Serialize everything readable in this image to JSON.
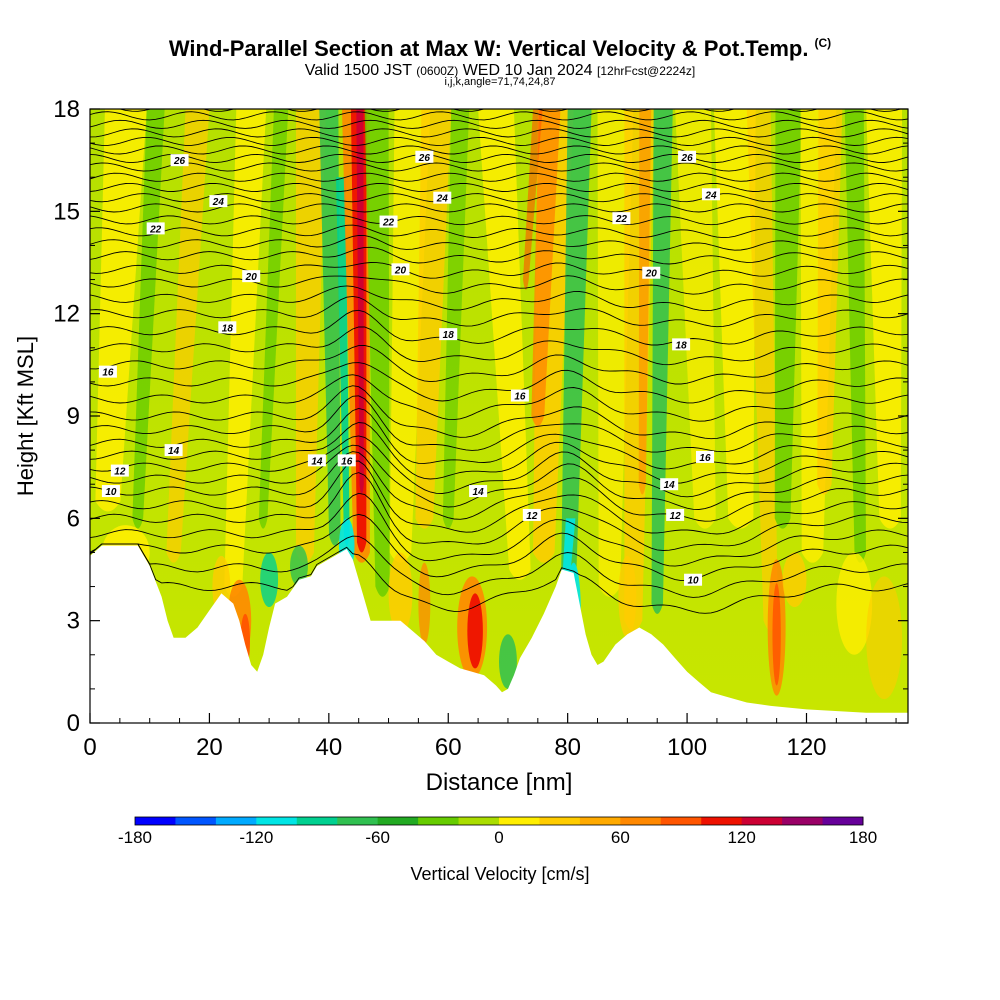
{
  "title": "Wind-Parallel Section at Max W: Vertical Velocity & Pot.Temp.",
  "copyright": "(C)",
  "subtitle_main": "Valid 1500 JST",
  "subtitle_utc": "(0600Z)",
  "subtitle_date": "WED 10 Jan 2024",
  "subtitle_fcst": "[12hrFcst@2224z]",
  "subtitle2": "i,j,k,angle=71,74,24,87",
  "chart_data": {
    "type": "heatmap",
    "xlabel": "Distance [nm]",
    "ylabel": "Height [Kft MSL]",
    "xlim": [
      0,
      137
    ],
    "ylim": [
      0,
      18
    ],
    "xticks": [
      "0",
      "20",
      "40",
      "60",
      "80",
      "100",
      "120"
    ],
    "yticks": [
      "0",
      "3",
      "6",
      "9",
      "12",
      "15",
      "18"
    ],
    "colorbar": {
      "label": "Vertical Velocity [cm/s]",
      "range": [
        -180,
        180
      ],
      "ticks": [
        "-180",
        "-120",
        "-60",
        "0",
        "60",
        "120",
        "180"
      ],
      "colors": [
        "#0000ff",
        "#0055ff",
        "#00aaff",
        "#00e5e5",
        "#00d090",
        "#30c050",
        "#22aa22",
        "#66cc00",
        "#aadd00",
        "#ffee00",
        "#ffcc00",
        "#ffaa00",
        "#ff8800",
        "#ff5500",
        "#ee1100",
        "#cc0033",
        "#990066",
        "#660099"
      ]
    },
    "terrain_kft": [
      [
        0,
        4.9
      ],
      [
        2,
        5.2
      ],
      [
        8,
        5.2
      ],
      [
        10,
        4.6
      ],
      [
        12,
        3.7
      ],
      [
        13,
        3.0
      ],
      [
        14,
        2.5
      ],
      [
        16,
        2.5
      ],
      [
        18,
        2.8
      ],
      [
        20,
        3.3
      ],
      [
        22,
        3.8
      ],
      [
        24,
        3.5
      ],
      [
        25,
        3.0
      ],
      [
        26,
        2.3
      ],
      [
        27,
        1.7
      ],
      [
        28,
        1.5
      ],
      [
        29,
        2.0
      ],
      [
        30,
        2.8
      ],
      [
        31,
        3.5
      ],
      [
        33,
        3.7
      ],
      [
        35,
        4.2
      ],
      [
        37,
        4.3
      ],
      [
        38,
        4.6
      ],
      [
        40,
        4.8
      ],
      [
        42,
        5.0
      ],
      [
        43,
        5.1
      ],
      [
        44,
        4.8
      ],
      [
        45,
        4.2
      ],
      [
        46,
        3.6
      ],
      [
        47,
        3.0
      ],
      [
        49,
        3.0
      ],
      [
        52,
        3.0
      ],
      [
        54,
        2.7
      ],
      [
        56,
        2.4
      ],
      [
        58,
        2.0
      ],
      [
        60,
        1.8
      ],
      [
        62,
        1.6
      ],
      [
        64,
        1.5
      ],
      [
        66,
        1.4
      ],
      [
        68,
        1.1
      ],
      [
        69,
        0.9
      ],
      [
        70,
        1.0
      ],
      [
        71,
        1.4
      ],
      [
        72,
        1.9
      ],
      [
        74,
        2.5
      ],
      [
        76,
        3.2
      ],
      [
        78,
        4.0
      ],
      [
        79,
        4.5
      ],
      [
        81,
        4.4
      ],
      [
        82,
        3.5
      ],
      [
        83,
        2.6
      ],
      [
        84,
        2.0
      ],
      [
        85,
        1.7
      ],
      [
        86,
        1.8
      ],
      [
        88,
        2.3
      ],
      [
        90,
        2.6
      ],
      [
        92,
        2.8
      ],
      [
        94,
        2.6
      ],
      [
        96,
        2.3
      ],
      [
        98,
        1.9
      ],
      [
        100,
        1.5
      ],
      [
        102,
        1.2
      ],
      [
        104,
        0.9
      ],
      [
        106,
        0.8
      ],
      [
        108,
        0.7
      ],
      [
        110,
        0.6
      ],
      [
        114,
        0.5
      ],
      [
        120,
        0.4
      ],
      [
        130,
        0.3
      ],
      [
        137,
        0.3
      ]
    ],
    "theta_labels": [
      {
        "text": "26",
        "x": 15,
        "y": 16.5
      },
      {
        "text": "26",
        "x": 56,
        "y": 16.6
      },
      {
        "text": "26",
        "x": 100,
        "y": 16.6
      },
      {
        "text": "24",
        "x": 21.5,
        "y": 15.3
      },
      {
        "text": "24",
        "x": 59,
        "y": 15.4
      },
      {
        "text": "24",
        "x": 104,
        "y": 15.5
      },
      {
        "text": "22",
        "x": 11,
        "y": 14.5
      },
      {
        "text": "22",
        "x": 50,
        "y": 14.7
      },
      {
        "text": "22",
        "x": 89,
        "y": 14.8
      },
      {
        "text": "20",
        "x": 27,
        "y": 13.1
      },
      {
        "text": "20",
        "x": 52,
        "y": 13.3
      },
      {
        "text": "20",
        "x": 94,
        "y": 13.2
      },
      {
        "text": "18",
        "x": 23,
        "y": 11.6
      },
      {
        "text": "18",
        "x": 60,
        "y": 11.4
      },
      {
        "text": "18",
        "x": 99,
        "y": 11.1
      },
      {
        "text": "16",
        "x": 3,
        "y": 10.3
      },
      {
        "text": "16",
        "x": 72,
        "y": 9.6
      },
      {
        "text": "16",
        "x": 103,
        "y": 7.8
      },
      {
        "text": "16",
        "x": 43,
        "y": 7.7
      },
      {
        "text": "14",
        "x": 14,
        "y": 8.0
      },
      {
        "text": "14",
        "x": 38,
        "y": 7.7
      },
      {
        "text": "14",
        "x": 65,
        "y": 6.8
      },
      {
        "text": "14",
        "x": 97,
        "y": 7.0
      },
      {
        "text": "12",
        "x": 5,
        "y": 7.4
      },
      {
        "text": "12",
        "x": 74,
        "y": 6.1
      },
      {
        "text": "12",
        "x": 98,
        "y": 6.1
      },
      {
        "text": "10",
        "x": 3.5,
        "y": 6.8
      },
      {
        "text": "10",
        "x": 101,
        "y": 4.2
      }
    ],
    "grid": false
  }
}
